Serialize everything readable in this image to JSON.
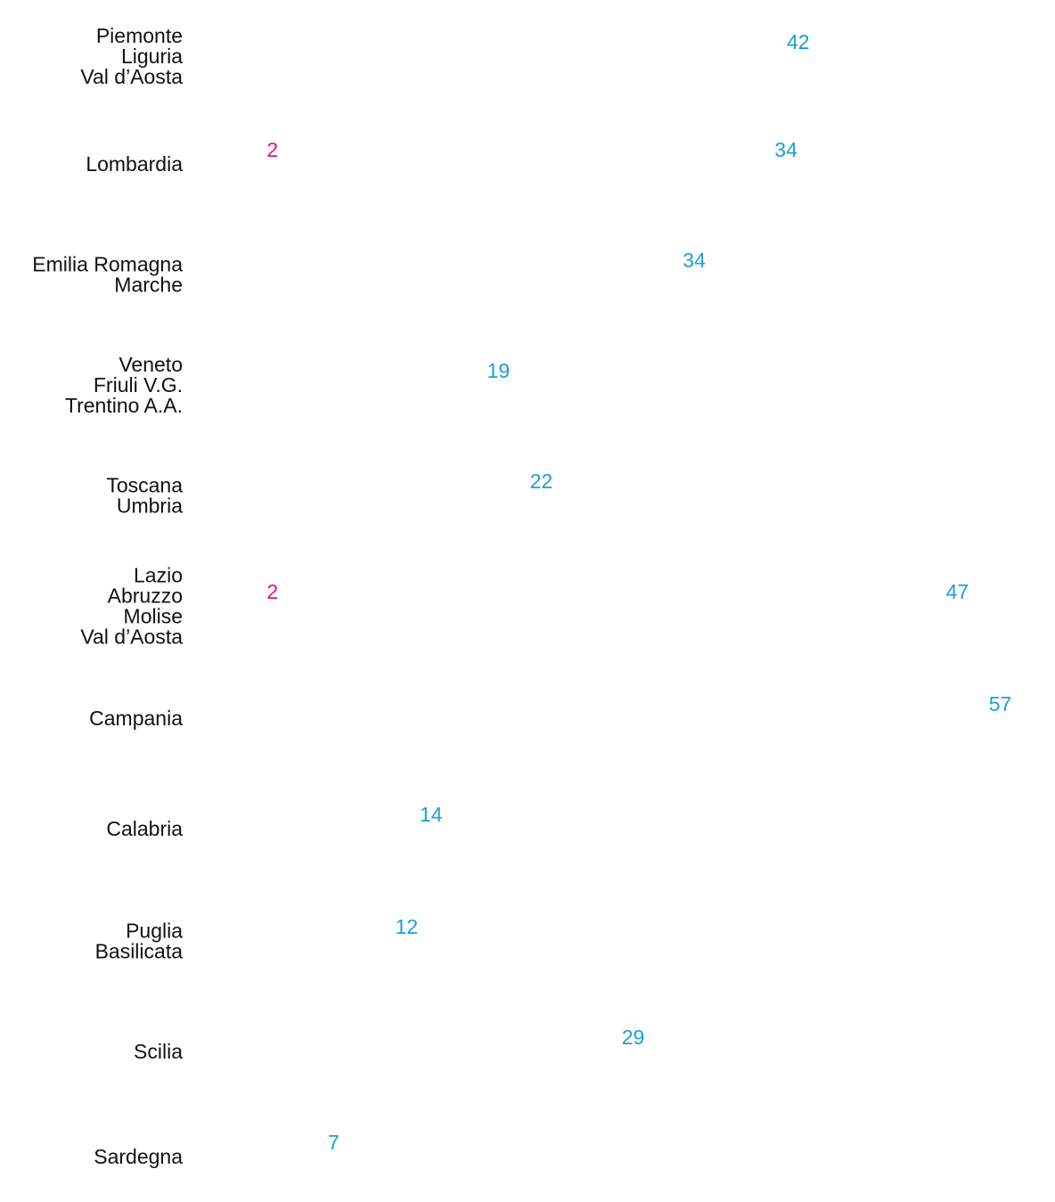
{
  "chart_data": {
    "type": "bar",
    "orientation": "horizontal",
    "style": "pictogram",
    "units_per_icon": 7,
    "categories": [
      [
        "Piemonte",
        "Liguria",
        "Val d’Aosta"
      ],
      [
        "Lombardia"
      ],
      [
        "Emilia Romagna",
        "Marche"
      ],
      [
        "Veneto",
        "Friuli V.G.",
        "Trentino A.A."
      ],
      [
        "Toscana",
        "Umbria"
      ],
      [
        "Lazio",
        "Abruzzo",
        "Molise",
        "Val d’Aosta"
      ],
      [
        "Campania"
      ],
      [
        "Calabria"
      ],
      [
        "Puglia",
        "Basilicata"
      ],
      [
        "Scilia"
      ],
      [
        "Sardegna"
      ]
    ],
    "series": [
      {
        "values": [
          0,
          2,
          0,
          0,
          0,
          2,
          0,
          0,
          0,
          0,
          0
        ],
        "color": "#f5c1a8",
        "label_color": "#e0137a"
      },
      {
        "values": [
          42,
          34,
          34,
          19,
          22,
          47,
          57,
          14,
          12,
          29,
          7
        ],
        "color": "#6f9ed3",
        "label_color": "#1b9fd8"
      }
    ],
    "legend": "none",
    "grid": false
  }
}
